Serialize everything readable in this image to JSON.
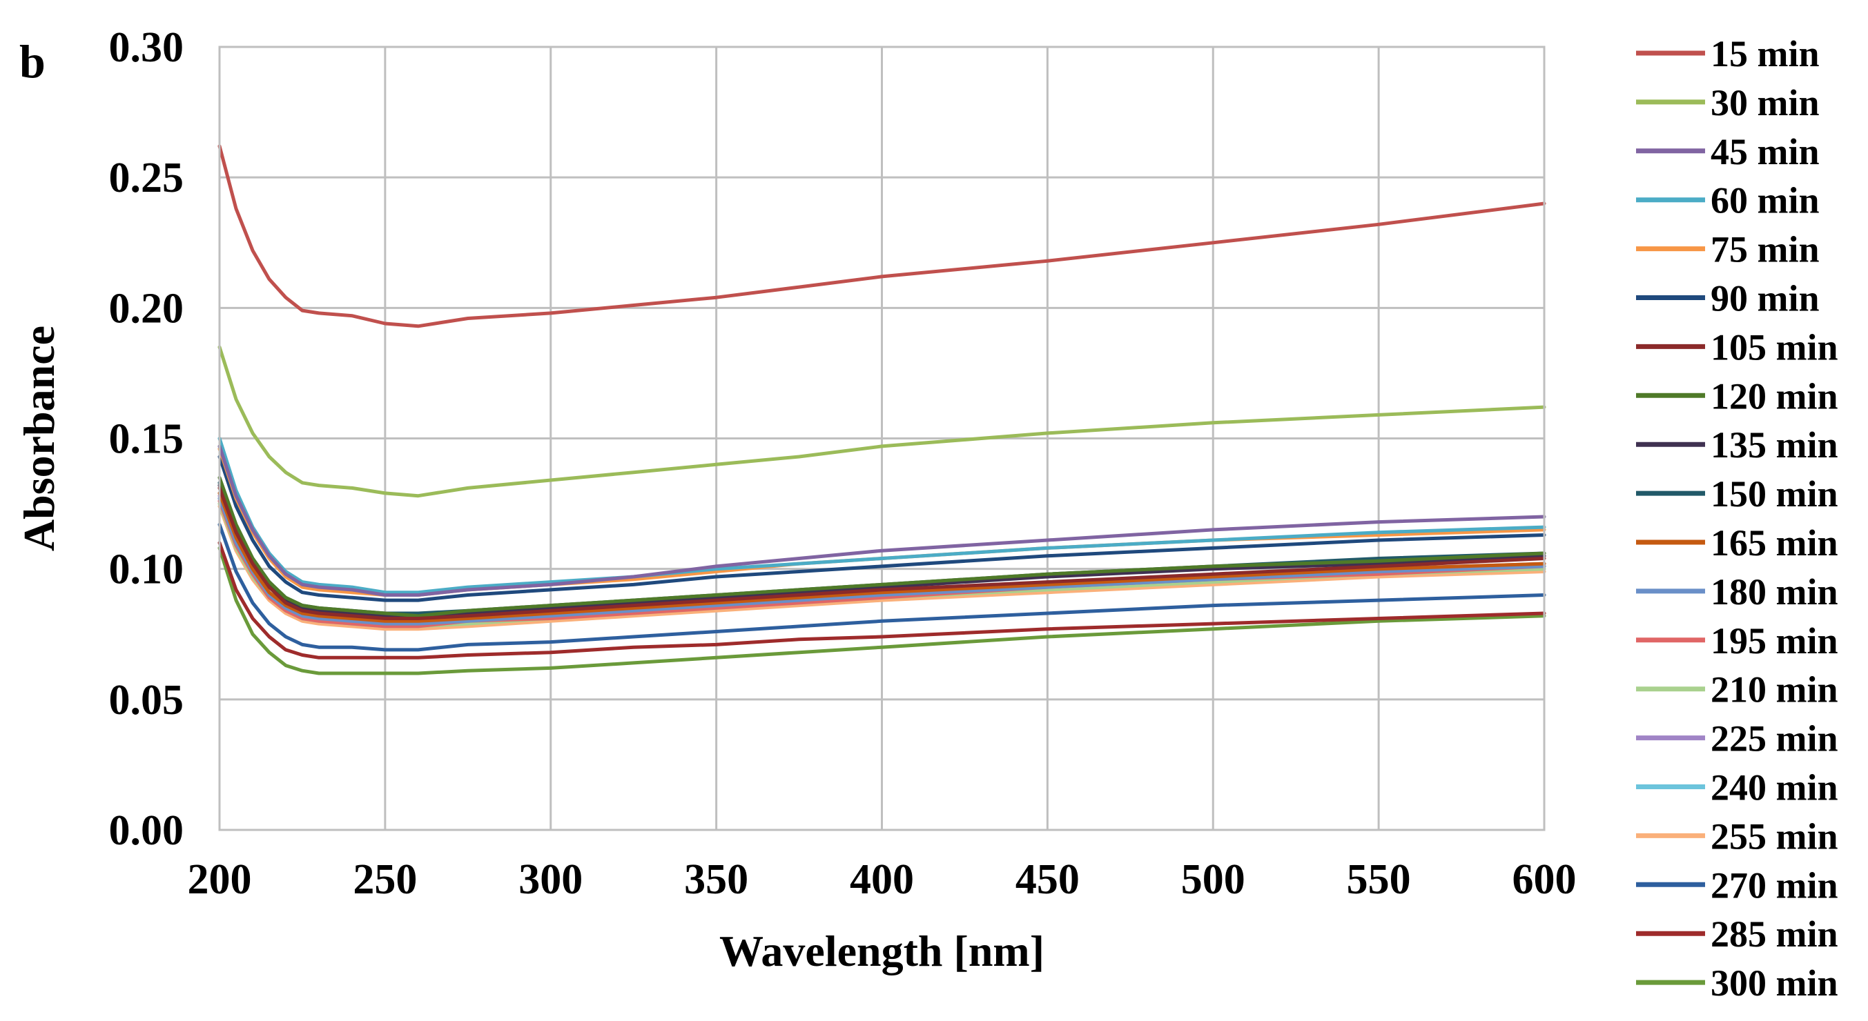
{
  "chart_data": {
    "type": "line",
    "panel_label": "b",
    "title": "",
    "xlabel": "Wavelength [nm]",
    "ylabel": "Absorbance",
    "xlim": [
      200,
      600
    ],
    "ylim": [
      0,
      0.3
    ],
    "xticks": [
      200,
      250,
      300,
      350,
      400,
      450,
      500,
      550,
      600
    ],
    "xtick_labels": [
      "200",
      "250",
      "300",
      "350",
      "400",
      "450",
      "500",
      "550",
      "600"
    ],
    "yticks": [
      0,
      0.05,
      0.1,
      0.15,
      0.2,
      0.25,
      0.3
    ],
    "ytick_labels": [
      "0.00",
      "0.05",
      "0.10",
      "0.15",
      "0.20",
      "0.25",
      "0.30"
    ],
    "grid": true,
    "legend_position": "right",
    "x": [
      200,
      205,
      210,
      215,
      220,
      225,
      230,
      240,
      250,
      260,
      275,
      300,
      325,
      350,
      375,
      400,
      450,
      500,
      550,
      600
    ],
    "series": [
      {
        "name": "15 min",
        "color": "#C0504D",
        "values": [
          0.262,
          0.238,
          0.222,
          0.211,
          0.204,
          0.199,
          0.198,
          0.197,
          0.194,
          0.193,
          0.196,
          0.198,
          0.201,
          0.204,
          0.208,
          0.212,
          0.218,
          0.225,
          0.232,
          0.24
        ]
      },
      {
        "name": "30 min",
        "color": "#9BBB59",
        "values": [
          0.185,
          0.165,
          0.152,
          0.143,
          0.137,
          0.133,
          0.132,
          0.131,
          0.129,
          0.128,
          0.131,
          0.134,
          0.137,
          0.14,
          0.143,
          0.147,
          0.152,
          0.156,
          0.159,
          0.162
        ]
      },
      {
        "name": "45 min",
        "color": "#8064A2",
        "values": [
          0.147,
          0.128,
          0.115,
          0.105,
          0.098,
          0.094,
          0.093,
          0.092,
          0.09,
          0.09,
          0.092,
          0.094,
          0.097,
          0.101,
          0.104,
          0.107,
          0.111,
          0.115,
          0.118,
          0.12
        ]
      },
      {
        "name": "60 min",
        "color": "#4BACC6",
        "values": [
          0.15,
          0.13,
          0.116,
          0.106,
          0.099,
          0.095,
          0.094,
          0.093,
          0.091,
          0.091,
          0.093,
          0.095,
          0.097,
          0.1,
          0.102,
          0.104,
          0.108,
          0.111,
          0.114,
          0.116
        ]
      },
      {
        "name": "75 min",
        "color": "#F79646",
        "values": [
          0.146,
          0.127,
          0.114,
          0.104,
          0.097,
          0.093,
          0.092,
          0.091,
          0.09,
          0.09,
          0.092,
          0.094,
          0.096,
          0.099,
          0.102,
          0.104,
          0.108,
          0.111,
          0.113,
          0.115
        ]
      },
      {
        "name": "90 min",
        "color": "#1F497D",
        "values": [
          0.143,
          0.124,
          0.111,
          0.101,
          0.095,
          0.091,
          0.09,
          0.089,
          0.088,
          0.088,
          0.09,
          0.092,
          0.094,
          0.097,
          0.099,
          0.101,
          0.105,
          0.108,
          0.111,
          0.113
        ]
      },
      {
        "name": "105 min",
        "color": "#8B2A2A",
        "values": [
          0.131,
          0.114,
          0.102,
          0.093,
          0.087,
          0.084,
          0.083,
          0.082,
          0.081,
          0.081,
          0.082,
          0.084,
          0.086,
          0.088,
          0.09,
          0.092,
          0.095,
          0.098,
          0.101,
          0.104
        ]
      },
      {
        "name": "120 min",
        "color": "#4F7A28",
        "values": [
          0.135,
          0.117,
          0.104,
          0.095,
          0.089,
          0.086,
          0.085,
          0.084,
          0.083,
          0.082,
          0.084,
          0.086,
          0.088,
          0.09,
          0.092,
          0.094,
          0.098,
          0.101,
          0.103,
          0.106
        ]
      },
      {
        "name": "135 min",
        "color": "#3F3151",
        "values": [
          0.132,
          0.115,
          0.103,
          0.094,
          0.088,
          0.085,
          0.084,
          0.083,
          0.082,
          0.082,
          0.083,
          0.085,
          0.087,
          0.089,
          0.091,
          0.093,
          0.097,
          0.1,
          0.102,
          0.105
        ]
      },
      {
        "name": "150 min",
        "color": "#215968",
        "values": [
          0.133,
          0.116,
          0.104,
          0.095,
          0.089,
          0.086,
          0.085,
          0.084,
          0.083,
          0.083,
          0.084,
          0.086,
          0.088,
          0.09,
          0.092,
          0.094,
          0.098,
          0.101,
          0.104,
          0.106
        ]
      },
      {
        "name": "165 min",
        "color": "#C55A11",
        "values": [
          0.129,
          0.112,
          0.1,
          0.091,
          0.086,
          0.083,
          0.082,
          0.081,
          0.08,
          0.08,
          0.081,
          0.083,
          0.085,
          0.087,
          0.089,
          0.091,
          0.094,
          0.097,
          0.1,
          0.102
        ]
      },
      {
        "name": "180 min",
        "color": "#6A8FC8",
        "values": [
          0.127,
          0.11,
          0.099,
          0.09,
          0.085,
          0.082,
          0.081,
          0.08,
          0.079,
          0.079,
          0.08,
          0.082,
          0.084,
          0.086,
          0.088,
          0.09,
          0.093,
          0.096,
          0.099,
          0.101
        ]
      },
      {
        "name": "195 min",
        "color": "#E06666",
        "values": [
          0.126,
          0.109,
          0.098,
          0.089,
          0.084,
          0.081,
          0.08,
          0.079,
          0.078,
          0.078,
          0.08,
          0.081,
          0.083,
          0.085,
          0.087,
          0.089,
          0.093,
          0.096,
          0.098,
          0.101
        ]
      },
      {
        "name": "210 min",
        "color": "#A9D18E",
        "values": [
          0.125,
          0.108,
          0.097,
          0.089,
          0.084,
          0.081,
          0.08,
          0.079,
          0.078,
          0.078,
          0.079,
          0.081,
          0.083,
          0.085,
          0.087,
          0.089,
          0.092,
          0.095,
          0.098,
          0.1
        ]
      },
      {
        "name": "225 min",
        "color": "#A084C6",
        "values": [
          0.128,
          0.111,
          0.099,
          0.09,
          0.085,
          0.082,
          0.081,
          0.08,
          0.079,
          0.079,
          0.081,
          0.082,
          0.084,
          0.087,
          0.089,
          0.091,
          0.094,
          0.097,
          0.1,
          0.102
        ]
      },
      {
        "name": "240 min",
        "color": "#6CC4DC",
        "values": [
          0.127,
          0.11,
          0.098,
          0.09,
          0.084,
          0.081,
          0.08,
          0.079,
          0.078,
          0.078,
          0.08,
          0.082,
          0.084,
          0.086,
          0.088,
          0.09,
          0.093,
          0.096,
          0.099,
          0.101
        ]
      },
      {
        "name": "255 min",
        "color": "#FAB07A",
        "values": [
          0.124,
          0.107,
          0.096,
          0.088,
          0.083,
          0.08,
          0.079,
          0.078,
          0.077,
          0.077,
          0.078,
          0.08,
          0.082,
          0.084,
          0.086,
          0.088,
          0.091,
          0.094,
          0.097,
          0.099
        ]
      },
      {
        "name": "270 min",
        "color": "#2E5F9E",
        "values": [
          0.117,
          0.099,
          0.087,
          0.079,
          0.074,
          0.071,
          0.07,
          0.07,
          0.069,
          0.069,
          0.071,
          0.072,
          0.074,
          0.076,
          0.078,
          0.08,
          0.083,
          0.086,
          0.088,
          0.09
        ]
      },
      {
        "name": "285 min",
        "color": "#9E2B2B",
        "values": [
          0.11,
          0.092,
          0.081,
          0.074,
          0.069,
          0.067,
          0.066,
          0.066,
          0.066,
          0.066,
          0.067,
          0.068,
          0.07,
          0.071,
          0.073,
          0.074,
          0.077,
          0.079,
          0.081,
          0.083
        ]
      },
      {
        "name": "300 min",
        "color": "#6A9A3A",
        "values": [
          0.108,
          0.088,
          0.075,
          0.068,
          0.063,
          0.061,
          0.06,
          0.06,
          0.06,
          0.06,
          0.061,
          0.062,
          0.064,
          0.066,
          0.068,
          0.07,
          0.074,
          0.077,
          0.08,
          0.082
        ]
      }
    ]
  }
}
